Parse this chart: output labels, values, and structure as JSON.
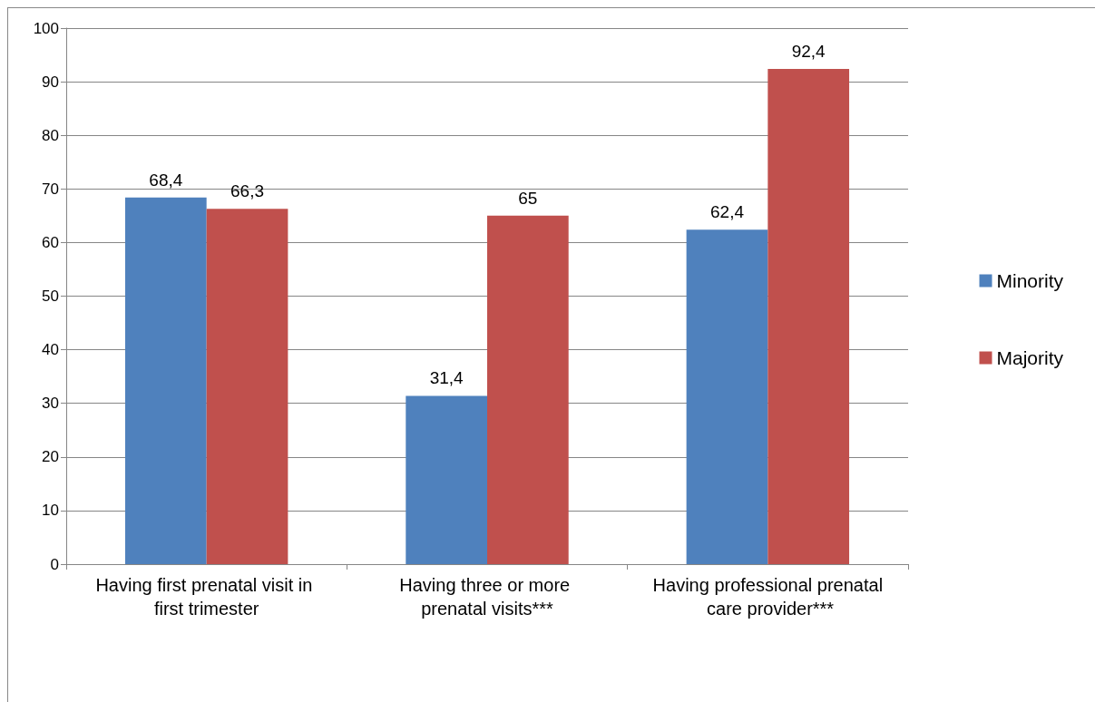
{
  "chart_data": {
    "type": "bar",
    "categories": [
      "Having first prenatal visit in first trimester",
      "Having three or more prenatal visits***",
      "Having professional prenatal care provider***"
    ],
    "series": [
      {
        "name": "Minority",
        "color": "#4f81bd",
        "values": [
          68.4,
          31.4,
          62.4
        ],
        "value_labels": [
          "68,4",
          "31,4",
          "62,4"
        ]
      },
      {
        "name": "Majority",
        "color": "#c0504d",
        "values": [
          66.3,
          65,
          92.4
        ],
        "value_labels": [
          "66,3",
          "65",
          "92,4"
        ]
      }
    ],
    "ylim": [
      0,
      100
    ],
    "yticks": [
      0,
      10,
      20,
      30,
      40,
      50,
      60,
      70,
      80,
      90,
      100
    ],
    "grid": "y",
    "legend": "right"
  }
}
